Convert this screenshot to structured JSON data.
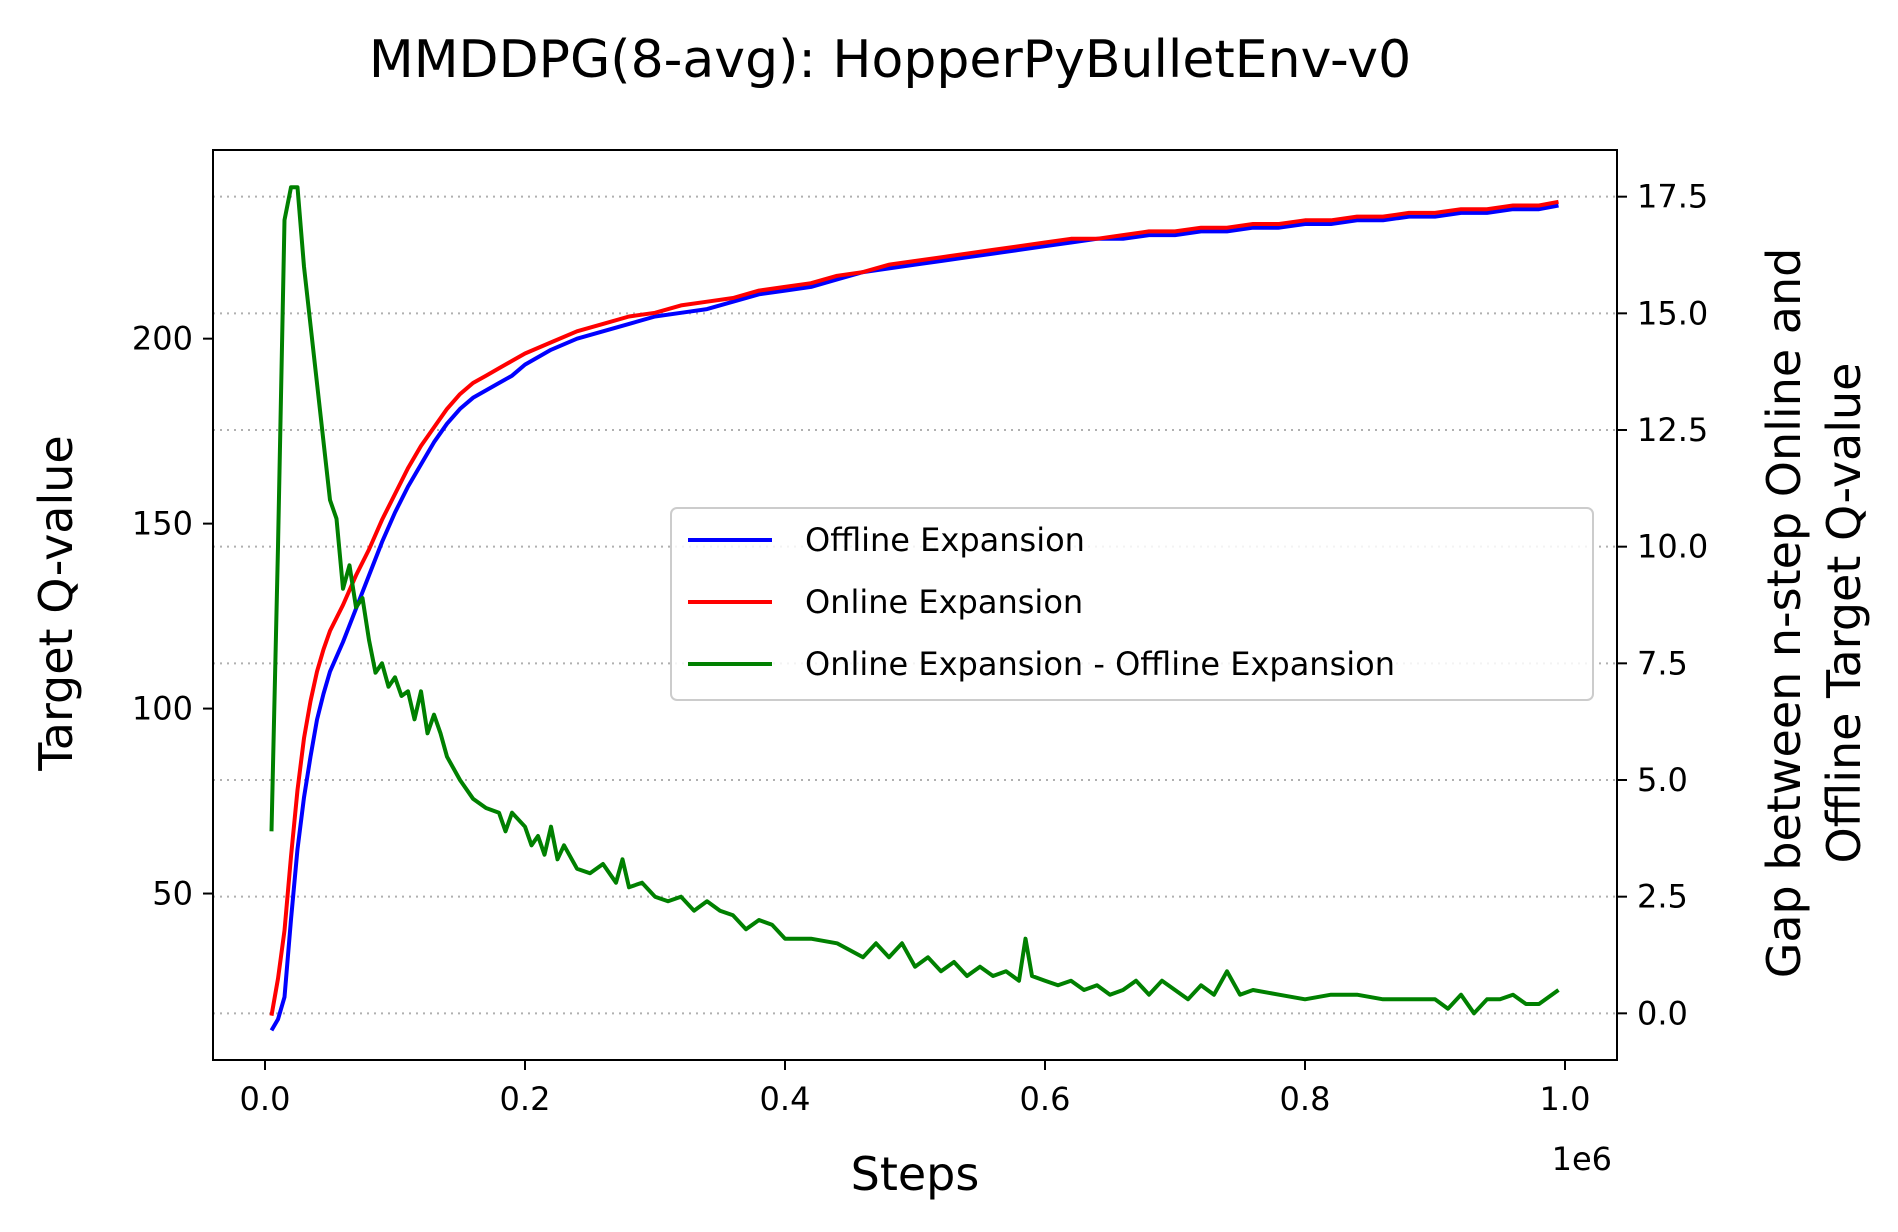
{
  "chart_data": {
    "type": "line",
    "title": "MMDDPG(8-avg): HopperPyBulletEnv-v0",
    "xlabel": "Steps",
    "x_offset_text": "1e6",
    "ylabel_left": "Target Q-value",
    "ylabel_right_line1": "Gap between n-step Online and",
    "ylabel_right_line2": "Offline Target Q-value",
    "xlim": [
      -0.04,
      1.04
    ],
    "ylim_left": [
      5,
      251
    ],
    "ylim_right": [
      -1.0,
      18.5
    ],
    "x_ticks": [
      0.0,
      0.2,
      0.4,
      0.6,
      0.8,
      1.0
    ],
    "x_tick_labels": [
      "0.0",
      "0.2",
      "0.4",
      "0.6",
      "0.8",
      "1.0"
    ],
    "y_left_ticks": [
      50,
      100,
      150,
      200
    ],
    "y_left_tick_labels": [
      "50",
      "100",
      "150",
      "200"
    ],
    "y_right_ticks": [
      0.0,
      2.5,
      5.0,
      7.5,
      10.0,
      12.5,
      15.0,
      17.5
    ],
    "y_right_tick_labels": [
      "0.0",
      "2.5",
      "5.0",
      "7.5",
      "10.0",
      "12.5",
      "15.0",
      "17.5"
    ],
    "grid": "horizontal dotted on right-axis ticks",
    "legend_position": "center-right",
    "series": [
      {
        "name": "Offline Expansion",
        "axis": "left",
        "color": "#0000ff",
        "x": [
          0.005,
          0.01,
          0.015,
          0.02,
          0.025,
          0.03,
          0.035,
          0.04,
          0.045,
          0.05,
          0.06,
          0.07,
          0.08,
          0.09,
          0.1,
          0.11,
          0.12,
          0.13,
          0.14,
          0.15,
          0.16,
          0.17,
          0.18,
          0.19,
          0.2,
          0.22,
          0.24,
          0.26,
          0.28,
          0.3,
          0.32,
          0.34,
          0.36,
          0.38,
          0.4,
          0.42,
          0.44,
          0.46,
          0.48,
          0.5,
          0.52,
          0.54,
          0.56,
          0.58,
          0.6,
          0.62,
          0.64,
          0.66,
          0.68,
          0.7,
          0.72,
          0.74,
          0.76,
          0.78,
          0.8,
          0.82,
          0.84,
          0.86,
          0.88,
          0.9,
          0.92,
          0.94,
          0.96,
          0.98,
          0.995
        ],
        "values": [
          13,
          16,
          22,
          43,
          62,
          76,
          87,
          97,
          104,
          110,
          118,
          127,
          136,
          145,
          153,
          160,
          166,
          172,
          177,
          181,
          184,
          186,
          188,
          190,
          193,
          197,
          200,
          202,
          204,
          206,
          207,
          208,
          210,
          212,
          213,
          214,
          216,
          218,
          219,
          220,
          221,
          222,
          223,
          224,
          225,
          226,
          227,
          227,
          228,
          228,
          229,
          229,
          230,
          230,
          231,
          231,
          232,
          232,
          233,
          233,
          234,
          234,
          235,
          235,
          236
        ]
      },
      {
        "name": "Online Expansion",
        "axis": "left",
        "color": "#ff0000",
        "x": [
          0.005,
          0.01,
          0.015,
          0.02,
          0.025,
          0.03,
          0.035,
          0.04,
          0.045,
          0.05,
          0.06,
          0.07,
          0.08,
          0.09,
          0.1,
          0.11,
          0.12,
          0.13,
          0.14,
          0.15,
          0.16,
          0.17,
          0.18,
          0.19,
          0.2,
          0.22,
          0.24,
          0.26,
          0.28,
          0.3,
          0.32,
          0.34,
          0.36,
          0.38,
          0.4,
          0.42,
          0.44,
          0.46,
          0.48,
          0.5,
          0.52,
          0.54,
          0.56,
          0.58,
          0.6,
          0.62,
          0.64,
          0.66,
          0.68,
          0.7,
          0.72,
          0.74,
          0.76,
          0.78,
          0.8,
          0.82,
          0.84,
          0.86,
          0.88,
          0.9,
          0.92,
          0.94,
          0.96,
          0.98,
          0.995
        ],
        "values": [
          17,
          27,
          40,
          60,
          78,
          92,
          102,
          110,
          116,
          121,
          128,
          136,
          143,
          151,
          158,
          165,
          171,
          176,
          181,
          185,
          188,
          190,
          192,
          194,
          196,
          199,
          202,
          204,
          206,
          207,
          209,
          210,
          211,
          213,
          214,
          215,
          217,
          218,
          220,
          221,
          222,
          223,
          224,
          225,
          226,
          227,
          227,
          228,
          229,
          229,
          230,
          230,
          231,
          231,
          232,
          232,
          233,
          233,
          234,
          234,
          235,
          235,
          236,
          236,
          237
        ]
      },
      {
        "name": "Online Expansion - Offline Expansion",
        "axis": "right",
        "color": "#008000",
        "x": [
          0.005,
          0.01,
          0.015,
          0.02,
          0.025,
          0.03,
          0.04,
          0.05,
          0.055,
          0.06,
          0.065,
          0.07,
          0.075,
          0.08,
          0.085,
          0.09,
          0.095,
          0.1,
          0.105,
          0.11,
          0.115,
          0.12,
          0.125,
          0.13,
          0.135,
          0.14,
          0.15,
          0.16,
          0.17,
          0.18,
          0.185,
          0.19,
          0.2,
          0.205,
          0.21,
          0.215,
          0.22,
          0.225,
          0.23,
          0.24,
          0.25,
          0.26,
          0.27,
          0.275,
          0.28,
          0.29,
          0.3,
          0.31,
          0.32,
          0.33,
          0.34,
          0.35,
          0.36,
          0.37,
          0.38,
          0.39,
          0.4,
          0.42,
          0.44,
          0.46,
          0.47,
          0.48,
          0.49,
          0.5,
          0.51,
          0.52,
          0.53,
          0.54,
          0.55,
          0.56,
          0.57,
          0.58,
          0.585,
          0.59,
          0.6,
          0.61,
          0.62,
          0.63,
          0.64,
          0.65,
          0.66,
          0.67,
          0.68,
          0.69,
          0.7,
          0.71,
          0.72,
          0.73,
          0.74,
          0.75,
          0.76,
          0.78,
          0.8,
          0.82,
          0.84,
          0.86,
          0.88,
          0.9,
          0.91,
          0.92,
          0.93,
          0.94,
          0.95,
          0.96,
          0.97,
          0.98,
          0.995
        ],
        "values": [
          3.9,
          10.0,
          17.0,
          17.7,
          17.7,
          16.0,
          13.5,
          11.0,
          10.6,
          9.1,
          9.6,
          8.7,
          8.9,
          8.0,
          7.3,
          7.5,
          7.0,
          7.2,
          6.8,
          6.9,
          6.3,
          6.9,
          6.0,
          6.4,
          6.0,
          5.5,
          5.0,
          4.6,
          4.4,
          4.3,
          3.9,
          4.3,
          4.0,
          3.6,
          3.8,
          3.4,
          4.0,
          3.3,
          3.6,
          3.1,
          3.0,
          3.2,
          2.8,
          3.3,
          2.7,
          2.8,
          2.5,
          2.4,
          2.5,
          2.2,
          2.4,
          2.2,
          2.1,
          1.8,
          2.0,
          1.9,
          1.6,
          1.6,
          1.5,
          1.2,
          1.5,
          1.2,
          1.5,
          1.0,
          1.2,
          0.9,
          1.1,
          0.8,
          1.0,
          0.8,
          0.9,
          0.7,
          1.6,
          0.8,
          0.7,
          0.6,
          0.7,
          0.5,
          0.6,
          0.4,
          0.5,
          0.7,
          0.4,
          0.7,
          0.5,
          0.3,
          0.6,
          0.4,
          0.9,
          0.4,
          0.5,
          0.4,
          0.3,
          0.4,
          0.4,
          0.3,
          0.3,
          0.3,
          0.1,
          0.4,
          0.0,
          0.3,
          0.3,
          0.4,
          0.2,
          0.2,
          0.5
        ]
      }
    ]
  }
}
